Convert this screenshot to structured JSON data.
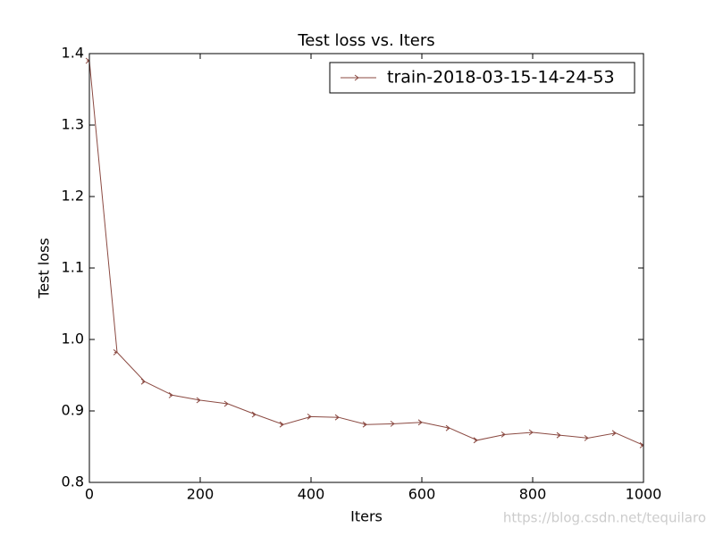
{
  "chart_data": {
    "type": "line",
    "title": "Test loss  vs. Iters",
    "xlabel": "Iters",
    "ylabel": "Test loss",
    "x": [
      0,
      50,
      100,
      150,
      200,
      250,
      300,
      350,
      400,
      450,
      500,
      550,
      600,
      650,
      700,
      750,
      800,
      850,
      900,
      950,
      1000
    ],
    "series": [
      {
        "name": "train-2018-03-15-14-24-53",
        "color": "#8b4a42",
        "values": [
          1.39,
          0.982,
          0.941,
          0.922,
          0.915,
          0.91,
          0.895,
          0.881,
          0.892,
          0.891,
          0.881,
          0.882,
          0.884,
          0.876,
          0.859,
          0.867,
          0.87,
          0.866,
          0.862,
          0.869,
          0.852
        ]
      }
    ],
    "xlim": [
      0,
      1000
    ],
    "xticks": [
      0,
      200,
      400,
      600,
      800,
      1000
    ],
    "ylim": [
      0.8,
      1.4
    ],
    "yticks": [
      {
        "value": 0.8,
        "label": "0.8"
      },
      {
        "value": 0.9,
        "label": "0.9"
      },
      {
        "value": 1.0,
        "label": "1.0"
      },
      {
        "value": 1.1,
        "label": "1.1"
      },
      {
        "value": 1.2,
        "label": "1.2"
      },
      {
        "value": 1.3,
        "label": "1.3"
      },
      {
        "value": 1.4,
        "label": "1.4"
      }
    ],
    "legend": "upper right",
    "grid": false,
    "watermark": "https://blog.csdn.net/tequilaro"
  }
}
